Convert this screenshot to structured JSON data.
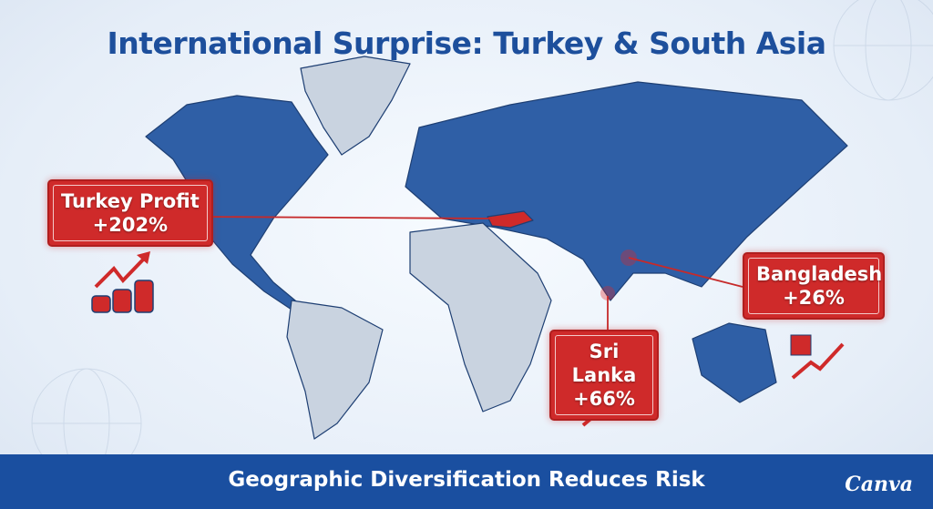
{
  "title": "International Surprise: Turkey & South Asia",
  "callouts": [
    {
      "label": "Turkey Profit",
      "value": "+202%"
    },
    {
      "label": "Sri Lanka",
      "value": "+66%"
    },
    {
      "label": "Bangladesh",
      "value": "+26%"
    }
  ],
  "footer": {
    "text": "Geographic Diversification Reduces Risk",
    "logo": "Canva"
  },
  "colors": {
    "highlight": "#2f5fa6",
    "land": "#c9d3e0",
    "accent": "#cf2a2a",
    "title": "#1d4f9c",
    "banner": "#1a4fa0"
  },
  "icons": [
    "growth-coins-icon",
    "tea-leaf-growth-icon",
    "garment-growth-icon",
    "globe-wireframe-icon"
  ]
}
